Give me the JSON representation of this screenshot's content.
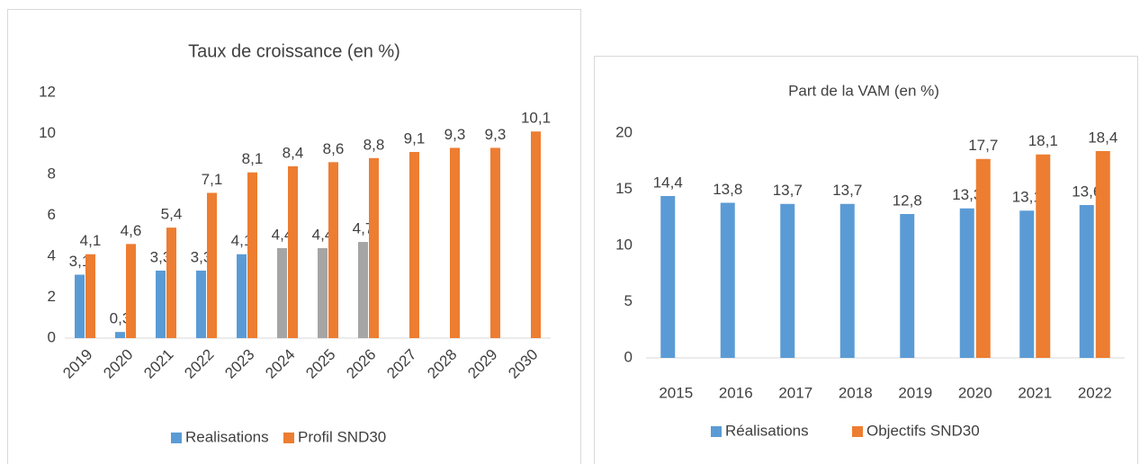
{
  "chart_data": [
    {
      "type": "bar",
      "title": "Taux de croissance (en %)",
      "categories": [
        "2019",
        "2020",
        "2021",
        "2022",
        "2023",
        "2024",
        "2025",
        "2026",
        "2027",
        "2028",
        "2029",
        "2030"
      ],
      "series": [
        {
          "name": "Realisations",
          "color": "#5b9bd5",
          "point_colors": [
            "#5b9bd5",
            "#5b9bd5",
            "#5b9bd5",
            "#5b9bd5",
            "#5b9bd5",
            "#a5a5a5",
            "#a5a5a5",
            "#a5a5a5",
            null,
            null,
            null,
            null
          ],
          "values": [
            3.1,
            0.3,
            3.3,
            3.3,
            4.1,
            4.4,
            4.4,
            4.7,
            null,
            null,
            null,
            null
          ],
          "value_labels": [
            "3,1",
            "0,3",
            "3,3",
            "3,3",
            "4,1",
            "4,4",
            "4,4",
            "4,7",
            null,
            null,
            null,
            null
          ]
        },
        {
          "name": "Profil SND30",
          "color": "#ed7d31",
          "values": [
            4.1,
            4.6,
            5.4,
            7.1,
            8.1,
            8.4,
            8.6,
            8.8,
            9.1,
            9.3,
            9.3,
            10.1
          ],
          "value_labels": [
            "4,1",
            "4,6",
            "5,4",
            "7,1",
            "8,1",
            "8,4",
            "8,6",
            "8,8",
            "9,1",
            "9,3",
            "9,3",
            "10,1"
          ]
        }
      ],
      "ylim": [
        0,
        12
      ],
      "yticks": [
        0,
        2,
        4,
        6,
        8,
        10,
        12
      ],
      "legend": "bottom",
      "rotated_x_labels": true
    },
    {
      "type": "bar",
      "title": "Part de la VAM (en %)",
      "categories": [
        "2015",
        "2016",
        "2017",
        "2018",
        "2019",
        "2020",
        "2021",
        "2022"
      ],
      "series": [
        {
          "name": "Réalisations",
          "color": "#5b9bd5",
          "values": [
            14.4,
            13.8,
            13.7,
            13.7,
            12.8,
            13.3,
            13.1,
            13.6
          ],
          "value_labels": [
            "14,4",
            "13,8",
            "13,7",
            "13,7",
            "12,8",
            "13,3",
            "13,1",
            "13,6"
          ]
        },
        {
          "name": "Objectifs SND30",
          "color": "#ed7d31",
          "values": [
            null,
            null,
            null,
            null,
            null,
            17.7,
            18.1,
            18.4
          ],
          "value_labels": [
            null,
            null,
            null,
            null,
            null,
            "17,7",
            "18,1",
            "18,4"
          ]
        }
      ],
      "ylim": [
        0,
        20
      ],
      "yticks": [
        0,
        5,
        10,
        15,
        20
      ],
      "legend": "bottom",
      "rotated_x_labels": false
    }
  ]
}
